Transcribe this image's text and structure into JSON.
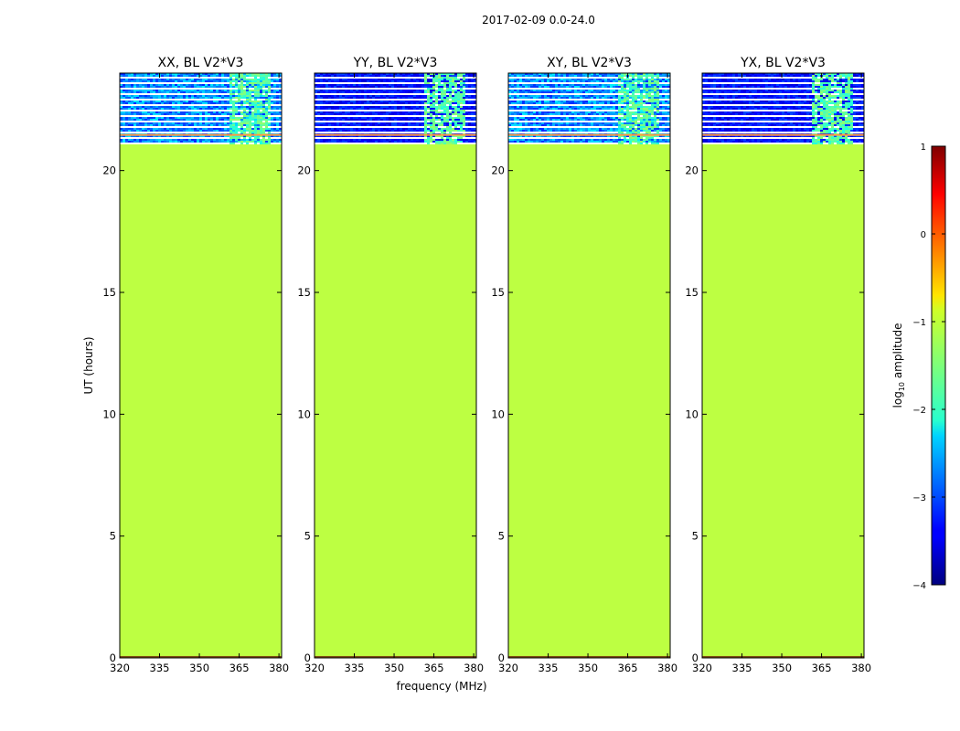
{
  "chart_data": {
    "type": "heatmap",
    "suptitle": "2017-02-09 0.0-24.0",
    "xlabel": "frequency (MHz)",
    "ylabel": "UT (hours)",
    "xlim": [
      320,
      381
    ],
    "ylim": [
      0,
      24
    ],
    "x_ticks": [
      "320",
      "335",
      "350",
      "365",
      "380"
    ],
    "y_ticks": [
      "0",
      "5",
      "10",
      "15",
      "20"
    ],
    "panels": [
      {
        "title": "XX, BL V2*V3",
        "background": "low-noise"
      },
      {
        "title": "YY, BL V2*V3",
        "background": "very-low"
      },
      {
        "title": "XY, BL V2*V3",
        "background": "low-noise"
      },
      {
        "title": "YX, BL V2*V3",
        "background": "very-low"
      }
    ],
    "flagged_fill_log10_amplitude": -1.2,
    "active_hours": [
      21.1,
      24.0
    ],
    "rfi_band_mhz": [
      361,
      376
    ],
    "colorbar": {
      "label": "log10 amplitude",
      "label_main": "log",
      "label_sub": "10",
      "label_tail": " amplitude",
      "range": [
        -4,
        1
      ],
      "ticks": [
        "1",
        "0",
        "−1",
        "−2",
        "−3",
        "−4"
      ],
      "colormap": "jet"
    }
  }
}
